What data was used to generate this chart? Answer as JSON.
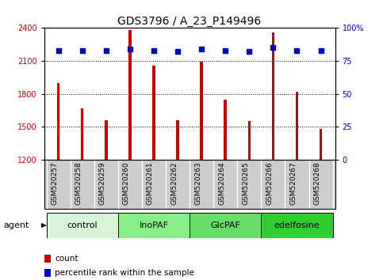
{
  "title": "GDS3796 / A_23_P149496",
  "samples": [
    "GSM520257",
    "GSM520258",
    "GSM520259",
    "GSM520260",
    "GSM520261",
    "GSM520262",
    "GSM520263",
    "GSM520264",
    "GSM520265",
    "GSM520266",
    "GSM520267",
    "GSM520268"
  ],
  "counts": [
    1900,
    1665,
    1560,
    2380,
    2060,
    1560,
    2090,
    1745,
    1555,
    2360,
    1820,
    1480
  ],
  "percentile_ranks": [
    83,
    83,
    83,
    84,
    83,
    82,
    84,
    83,
    82,
    85,
    83,
    83
  ],
  "ylim_left": [
    1200,
    2400
  ],
  "ylim_right": [
    0,
    100
  ],
  "yticks_left": [
    1200,
    1500,
    1800,
    2100,
    2400
  ],
  "yticks_right": [
    0,
    25,
    50,
    75,
    100
  ],
  "bar_color": "#cc0000",
  "dot_color": "#0000cc",
  "agent_groups": [
    {
      "label": "control",
      "start": 0,
      "end": 3,
      "color": "#d8f5d8"
    },
    {
      "label": "InoPAF",
      "start": 3,
      "end": 6,
      "color": "#88ee88"
    },
    {
      "label": "GlcPAF",
      "start": 6,
      "end": 9,
      "color": "#66dd66"
    },
    {
      "label": "edelfosine",
      "start": 9,
      "end": 12,
      "color": "#33cc33"
    }
  ],
  "legend_count_label": "count",
  "legend_pct_label": "percentile rank within the sample",
  "agent_label": "agent",
  "title_fontsize": 10,
  "tick_fontsize": 7,
  "bar_width": 0.12,
  "plot_bg_color": "#ffffff",
  "xtick_bg_color": "#cccccc"
}
